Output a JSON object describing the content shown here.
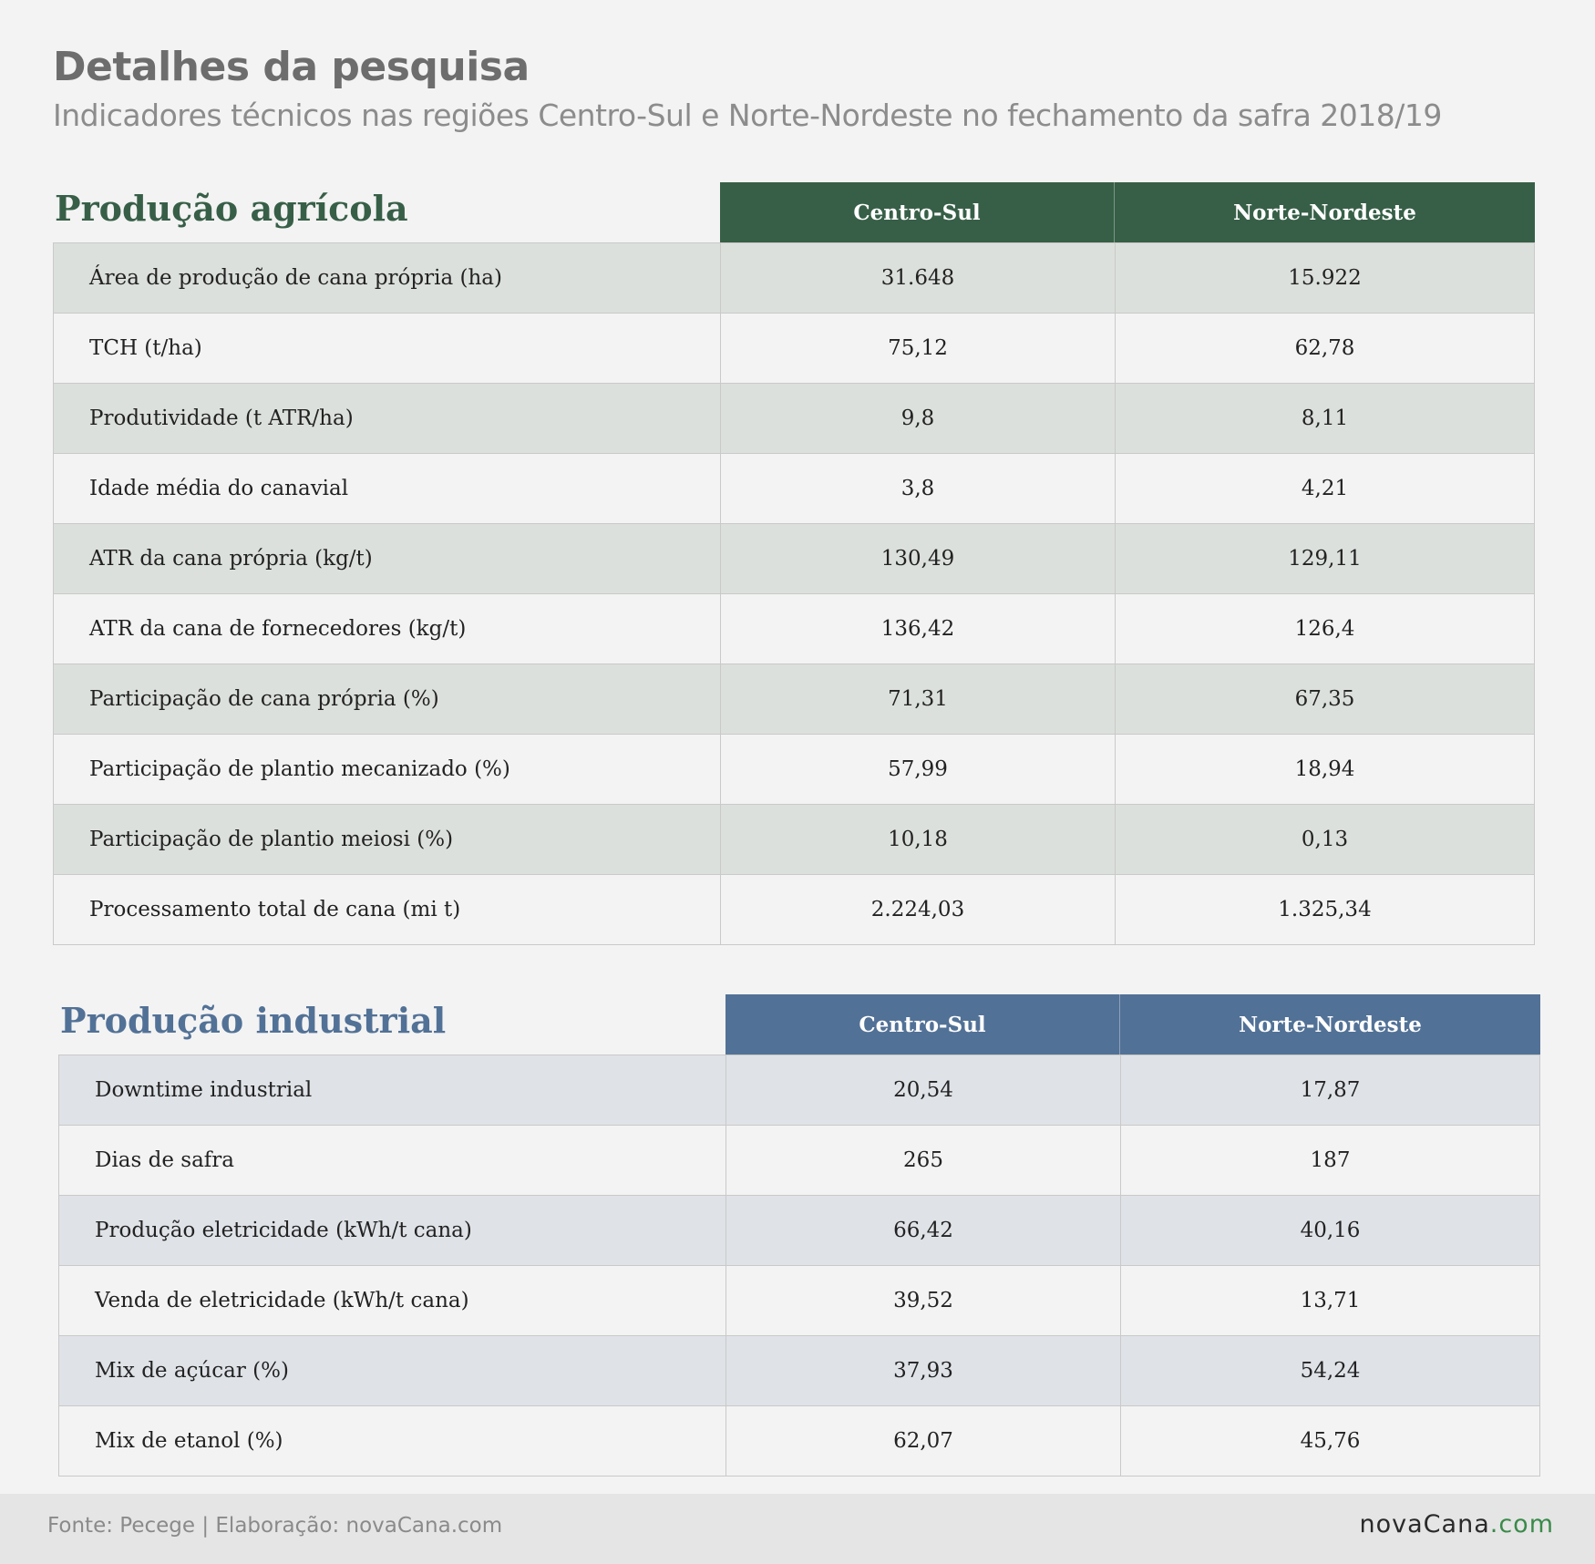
{
  "header": {
    "title": "Detalhes da pesquisa",
    "subtitle": "Indicadores técnicos nas regiões Centro-Sul e Norte-Nordeste no fechamento da safra 2018/19"
  },
  "agricultural": {
    "title": "Produção agrícola",
    "columns": [
      "Centro-Sul",
      "Norte-Nordeste"
    ],
    "accent": "#375f47",
    "rows": [
      {
        "label": "Área de produção de cana própria (ha)",
        "cs": "31.648",
        "nne": "15.922"
      },
      {
        "label": "TCH (t/ha)",
        "cs": "75,12",
        "nne": "62,78"
      },
      {
        "label": "Produtividade (t ATR/ha)",
        "cs": "9,8",
        "nne": "8,11"
      },
      {
        "label": "Idade média do canavial",
        "cs": "3,8",
        "nne": "4,21"
      },
      {
        "label": "ATR da cana própria (kg/t)",
        "cs": "130,49",
        "nne": "129,11"
      },
      {
        "label": "ATR da cana de fornecedores (kg/t)",
        "cs": "136,42",
        "nne": "126,4"
      },
      {
        "label": "Participação de cana própria (%)",
        "cs": "71,31",
        "nne": "67,35"
      },
      {
        "label": "Participação de plantio mecanizado (%)",
        "cs": "57,99",
        "nne": "18,94"
      },
      {
        "label": "Participação de plantio meiosi (%)",
        "cs": "10,18",
        "nne": "0,13"
      },
      {
        "label": "Processamento total de cana (mi t)",
        "cs": "2.224,03",
        "nne": "1.325,34"
      }
    ]
  },
  "industrial": {
    "title": "Produção industrial",
    "columns": [
      "Centro-Sul",
      "Norte-Nordeste"
    ],
    "accent": "#527196",
    "rows": [
      {
        "label": "Downtime industrial",
        "cs": "20,54",
        "nne": "17,87"
      },
      {
        "label": "Dias de safra",
        "cs": "265",
        "nne": "187"
      },
      {
        "label": "Produção eletricidade (kWh/t cana)",
        "cs": "66,42",
        "nne": "40,16"
      },
      {
        "label": "Venda de eletricidade (kWh/t cana)",
        "cs": "39,52",
        "nne": "13,71"
      },
      {
        "label": "Mix de açúcar (%)",
        "cs": "37,93",
        "nne": "54,24"
      },
      {
        "label": "Mix de etanol (%)",
        "cs": "62,07",
        "nne": "45,76"
      }
    ]
  },
  "footer": {
    "source": "Fonte: Pecege | Elaboração: novaCana.com",
    "logo_part1": "novaCana",
    "logo_part2": ".com"
  }
}
